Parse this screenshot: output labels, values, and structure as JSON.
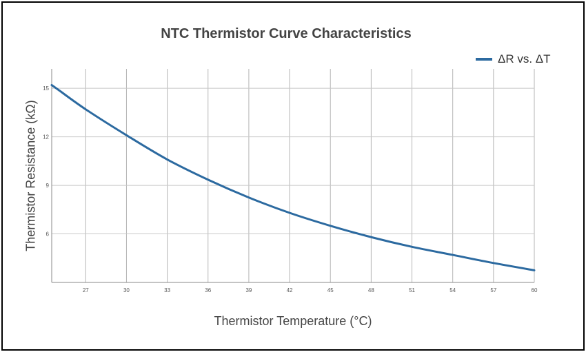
{
  "chart_data": {
    "type": "line",
    "title": "NTC Thermistor Curve Characteristics",
    "xlabel": "Thermistor Temperature (°C)",
    "ylabel": "Thermistor Resistance (kΩ)",
    "xlim": [
      24.5,
      60
    ],
    "ylim": [
      3,
      16.2
    ],
    "xticks": [
      27,
      30,
      33,
      36,
      39,
      42,
      45,
      48,
      51,
      54,
      57,
      60
    ],
    "yticks": [
      6,
      9,
      12,
      15
    ],
    "grid": true,
    "legend_position": "top-right",
    "series": [
      {
        "name": "ΔR vs. ΔT",
        "color": "#2c6aa0",
        "x": [
          24.5,
          25,
          27,
          30,
          33,
          36,
          39,
          42,
          45,
          48,
          51,
          54,
          57,
          60
        ],
        "y": [
          15.2,
          14.9,
          13.7,
          12.1,
          10.6,
          9.35,
          8.25,
          7.3,
          6.5,
          5.8,
          5.2,
          4.7,
          4.2,
          3.75
        ]
      }
    ]
  }
}
